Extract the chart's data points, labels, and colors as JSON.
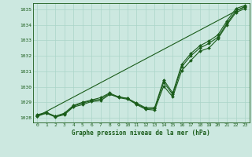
{
  "xlabel": "Graphe pression niveau de la mer (hPa)",
  "ylim": [
    1027.7,
    1035.4
  ],
  "xlim": [
    -0.5,
    23.5
  ],
  "yticks": [
    1028,
    1029,
    1030,
    1031,
    1032,
    1033,
    1034,
    1035
  ],
  "xticks": [
    0,
    1,
    2,
    3,
    4,
    5,
    6,
    7,
    8,
    9,
    10,
    11,
    12,
    13,
    14,
    15,
    16,
    17,
    18,
    19,
    20,
    21,
    22,
    23
  ],
  "xtick_labels": [
    "0",
    "1",
    "2",
    "3",
    "4",
    "5",
    "6",
    "7",
    "8",
    "9",
    "10",
    "11",
    "12",
    "13",
    "14",
    "15",
    "16",
    "17",
    "18",
    "19",
    "20",
    "21",
    "22",
    "23"
  ],
  "bg_color": "#cce8e0",
  "grid_color": "#aad4c8",
  "line_color": "#1a5c1a",
  "series": [
    [
      1028.1,
      1028.3,
      1028.05,
      1028.2,
      1028.7,
      1028.85,
      1029.05,
      1029.1,
      1029.5,
      1029.35,
      1029.25,
      1028.85,
      1028.55,
      1028.5,
      1030.05,
      1029.35,
      1031.05,
      1031.7,
      1032.3,
      1032.5,
      1033.1,
      1034.0,
      1034.8,
      1035.05
    ],
    [
      1028.15,
      1028.3,
      1028.1,
      1028.25,
      1028.75,
      1028.95,
      1029.1,
      1029.2,
      1029.55,
      1029.3,
      1029.2,
      1028.9,
      1028.6,
      1028.6,
      1030.3,
      1029.5,
      1031.3,
      1032.0,
      1032.5,
      1032.8,
      1033.2,
      1034.1,
      1034.9,
      1035.15
    ],
    [
      1028.2,
      1028.35,
      1028.1,
      1028.3,
      1028.8,
      1029.0,
      1029.15,
      1029.3,
      1029.6,
      1029.35,
      1029.25,
      1028.95,
      1028.65,
      1028.65,
      1030.45,
      1029.6,
      1031.45,
      1032.15,
      1032.65,
      1032.95,
      1033.35,
      1034.25,
      1035.05,
      1035.25
    ]
  ],
  "straight_series": [
    1028.1,
    1035.25
  ]
}
